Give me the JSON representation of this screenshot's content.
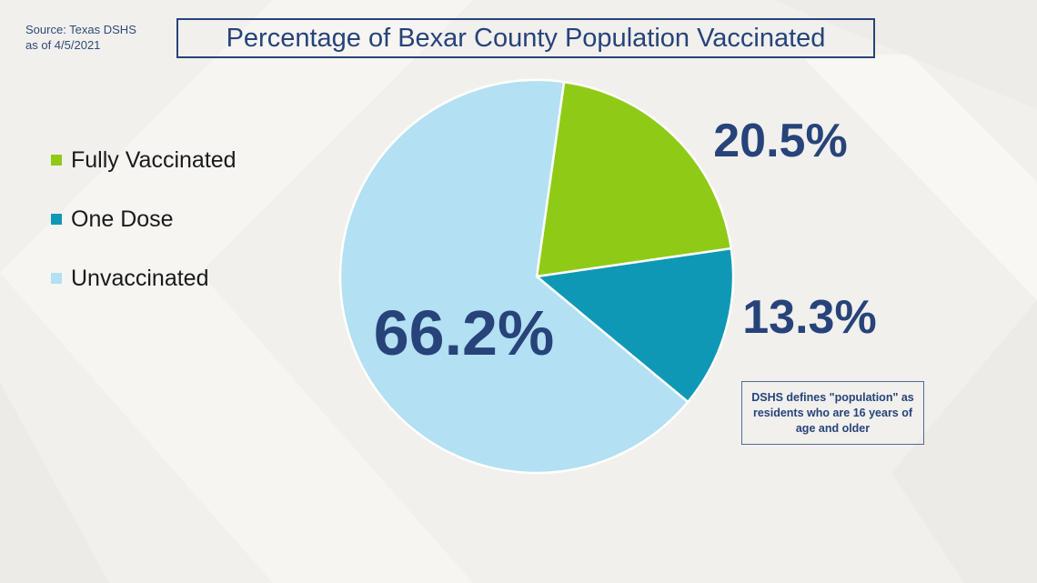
{
  "source": {
    "line1": "Source: Texas DSHS",
    "line2": "as of 4/5/2021"
  },
  "chart_data": {
    "type": "pie",
    "title": "Percentage of Bexar County Population Vaccinated",
    "categories": [
      "Fully Vaccinated",
      "One Dose",
      "Unvaccinated"
    ],
    "values": [
      20.5,
      13.3,
      66.2
    ],
    "value_labels": [
      "20.5%",
      "13.3%",
      "66.2%"
    ],
    "colors": [
      "#8fcb16",
      "#0f98b6",
      "#b3e0f2"
    ],
    "legend_placement": "left"
  },
  "note": "DSHS defines \"population\" as residents who are 16 years of age and older"
}
